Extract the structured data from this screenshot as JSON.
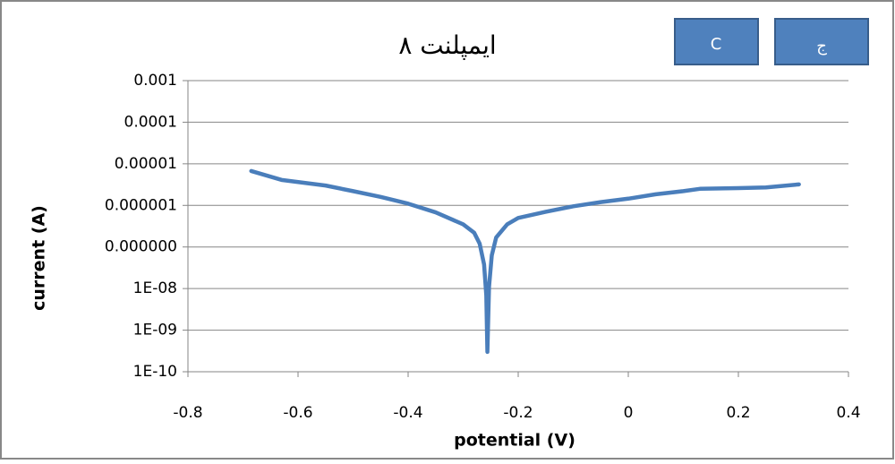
{
  "chart_data": {
    "type": "line",
    "title": "ايمپلنت ٨",
    "xlabel": "potential (V)",
    "ylabel": "current (A)",
    "xlim": [
      -0.8,
      0.4
    ],
    "xticks": [
      -0.8,
      -0.6,
      -0.4,
      -0.2,
      0,
      0.2,
      0.4
    ],
    "ylim": [
      1e-10,
      0.001
    ],
    "log_y": true,
    "grid": true,
    "yticks": [
      0.001,
      0.0001,
      1e-05,
      1e-06,
      {
        "value": 1e-07,
        "label": "0.000000"
      },
      {
        "value": 1e-08,
        "label": "1E-08"
      },
      {
        "value": 1e-09,
        "label": "1E-09"
      },
      {
        "value": 1e-10,
        "label": "1E-10"
      }
    ],
    "series": [
      {
        "color": "#4a7ebb",
        "x": [
          -0.685,
          -0.63,
          -0.55,
          -0.5,
          -0.45,
          -0.4,
          -0.35,
          -0.3,
          -0.28,
          -0.27,
          -0.262,
          -0.258,
          -0.256,
          -0.253,
          -0.248,
          -0.24,
          -0.22,
          -0.2,
          -0.15,
          -0.1,
          -0.05,
          0,
          0.05,
          0.1,
          0.13,
          0.2,
          0.25,
          0.31
        ],
        "values": [
          6.7e-06,
          4.1e-06,
          3e-06,
          2.2e-06,
          1.6e-06,
          1.1e-06,
          6.8e-07,
          3.5e-07,
          2.2e-07,
          1.2e-07,
          3.8e-08,
          6.9e-09,
          3e-10,
          1.1e-08,
          6.3e-08,
          1.7e-07,
          3.5e-07,
          5e-07,
          7e-07,
          9.5e-07,
          1.2e-06,
          1.45e-06,
          1.85e-06,
          2.2e-06,
          2.5e-06,
          2.6e-06,
          2.7e-06,
          3.2e-06
        ]
      }
    ]
  },
  "buttons": [
    "C",
    "ج"
  ]
}
